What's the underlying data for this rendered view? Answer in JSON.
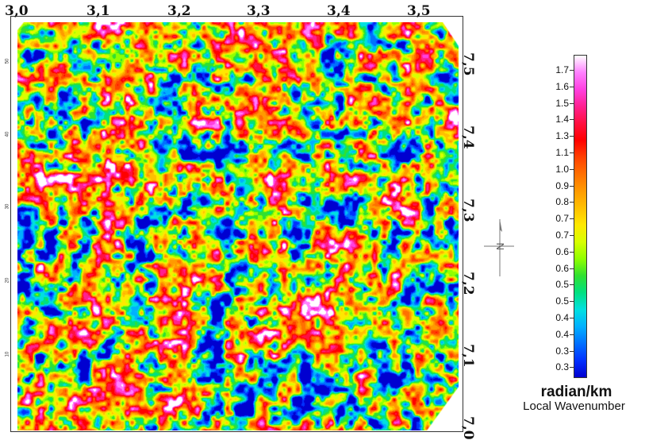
{
  "map": {
    "top_axis_labels": [
      "3,0",
      "3,1",
      "3,2",
      "3,3",
      "3,4",
      "3,5"
    ],
    "right_axis_labels": [
      "7,5",
      "7,4",
      "7,3",
      "7,2",
      "7,1",
      "7,0"
    ],
    "left_axis_small_labels": [
      "50",
      "40",
      "30",
      "20",
      "10"
    ]
  },
  "legend": {
    "ticks": [
      "1.7",
      "1.6",
      "1.5",
      "1.4",
      "1.3",
      "1.1",
      "1.0",
      "0.9",
      "0.8",
      "0.7",
      "0.7",
      "0.6",
      "0.6",
      "0.5",
      "0.5",
      "0.4",
      "0.4",
      "0.3",
      "0.3"
    ],
    "colors": [
      "#ffffff",
      "#ff80ff",
      "#ff40e0",
      "#ff2090",
      "#ff1040",
      "#ff0000",
      "#ff4000",
      "#ff7000",
      "#ff9a00",
      "#ffc000",
      "#ffe800",
      "#d8ff00",
      "#90ff00",
      "#30e030",
      "#00e080",
      "#00e0e0",
      "#00b0ff",
      "#0070ff",
      "#0030ff",
      "#0000d0"
    ],
    "unit": "radian/km",
    "title": "Local Wavenumber"
  },
  "icons": {
    "north_arrow": "north-arrow-icon"
  }
}
